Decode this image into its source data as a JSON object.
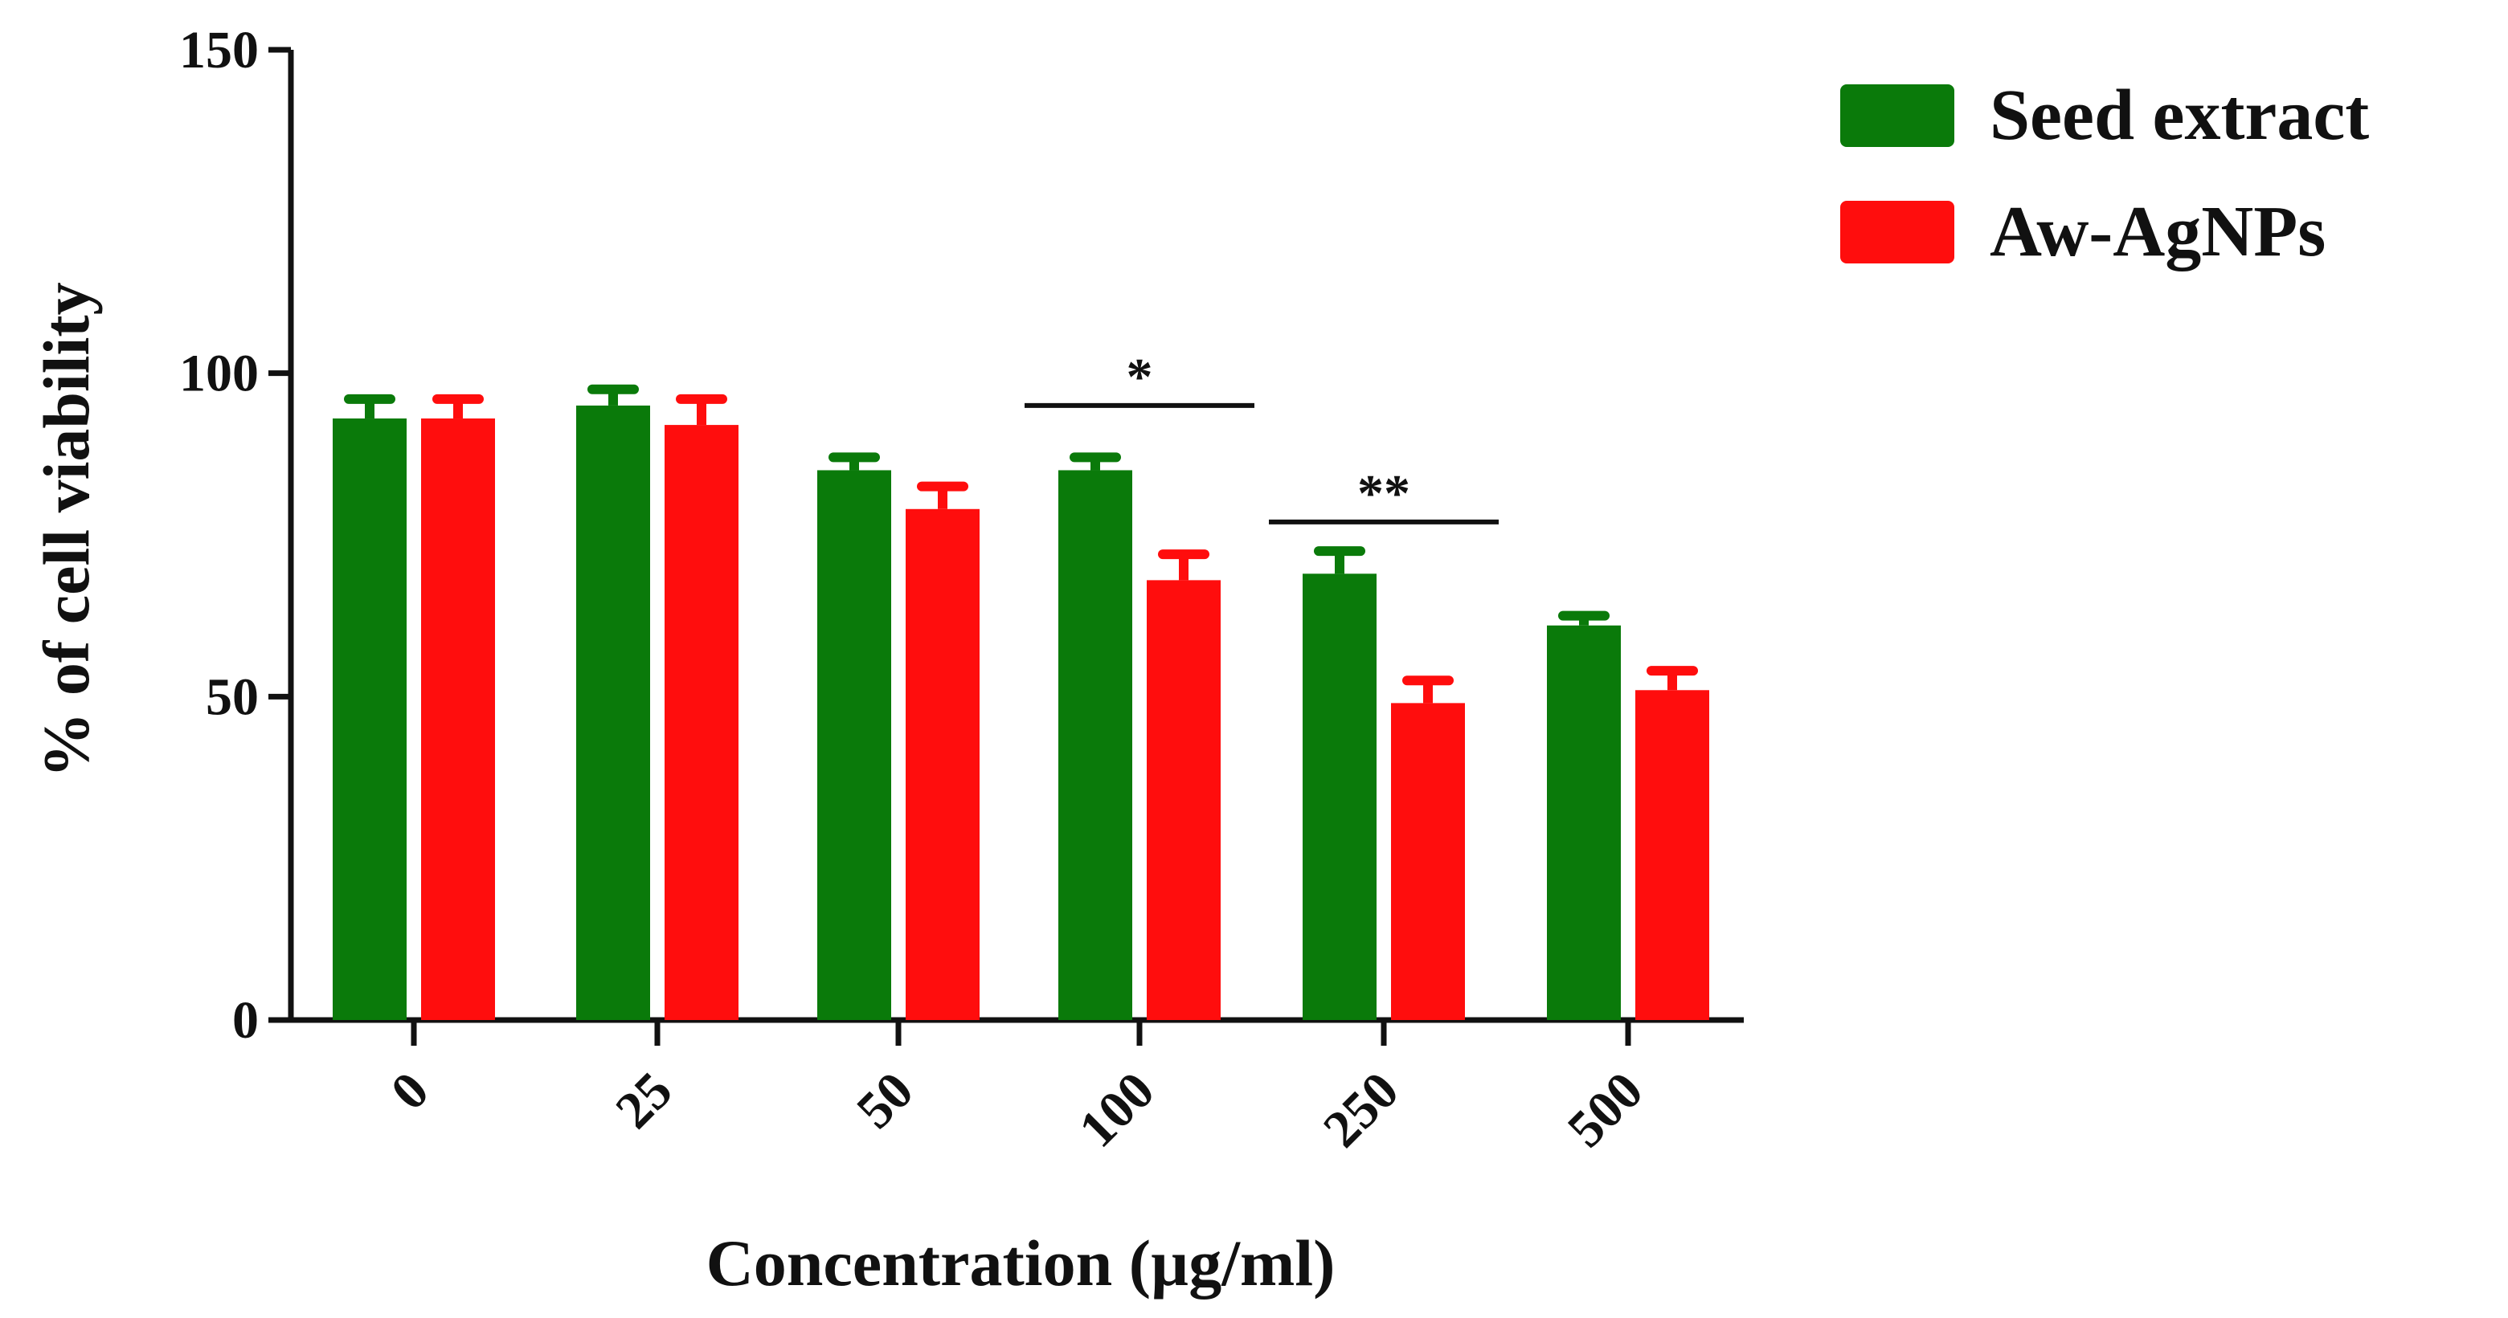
{
  "chart_data": {
    "type": "bar",
    "title": "",
    "xlabel": "Concentration (µg/ml)",
    "ylabel": "% of cell viability",
    "ylim": [
      0,
      150
    ],
    "yticks": [
      0,
      50,
      100,
      150
    ],
    "grid": false,
    "legend_position": "top-right",
    "categories": [
      "0",
      "25",
      "50",
      "100",
      "250",
      "500"
    ],
    "series": [
      {
        "name": "Seed extract",
        "color": "#0a7a0a",
        "values": [
          93,
          95,
          85,
          85,
          69,
          61
        ],
        "errors": [
          3,
          2.5,
          2,
          2,
          3.5,
          1.5
        ]
      },
      {
        "name": "Aw-AgNPs",
        "color": "#ff0d0d",
        "values": [
          93,
          92,
          79,
          68,
          49,
          51
        ],
        "errors": [
          3,
          4,
          3.5,
          4,
          3.5,
          3
        ]
      }
    ],
    "annotations": [
      {
        "label": "*",
        "from_category": "100",
        "to_category": "100",
        "at_value": 95
      },
      {
        "label": "**",
        "from_category": "250",
        "to_category": "250",
        "at_value": 77
      }
    ]
  }
}
